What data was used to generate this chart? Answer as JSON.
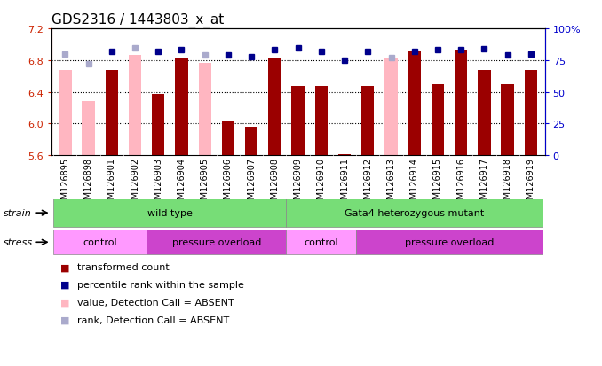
{
  "title": "GDS2316 / 1443803_x_at",
  "samples": [
    "GSM126895",
    "GSM126898",
    "GSM126901",
    "GSM126902",
    "GSM126903",
    "GSM126904",
    "GSM126905",
    "GSM126906",
    "GSM126907",
    "GSM126908",
    "GSM126909",
    "GSM126910",
    "GSM126911",
    "GSM126912",
    "GSM126913",
    "GSM126914",
    "GSM126915",
    "GSM126916",
    "GSM126917",
    "GSM126918",
    "GSM126919"
  ],
  "transformed_count": [
    null,
    null,
    6.67,
    null,
    6.37,
    6.82,
    null,
    6.02,
    5.96,
    6.82,
    6.47,
    6.47,
    5.61,
    6.47,
    null,
    6.92,
    6.5,
    6.93,
    6.67,
    6.5,
    6.68
  ],
  "absent_value": [
    6.67,
    6.28,
    null,
    6.87,
    null,
    null,
    6.77,
    null,
    null,
    null,
    null,
    null,
    null,
    null,
    6.82,
    null,
    null,
    null,
    null,
    null,
    null
  ],
  "percentile_rank": [
    80,
    72,
    82,
    85,
    82,
    83,
    79,
    79,
    78,
    83,
    85,
    82,
    75,
    82,
    77,
    82,
    83,
    83,
    84,
    79,
    80
  ],
  "absent_rank_vals": [
    80,
    72,
    null,
    null,
    null,
    null,
    79,
    null,
    null,
    null,
    null,
    null,
    null,
    null,
    77,
    null,
    null,
    null,
    null,
    null,
    null
  ],
  "ylim": [
    5.6,
    7.2
  ],
  "yticks_left": [
    5.6,
    6.0,
    6.4,
    6.8,
    7.2
  ],
  "yticks_right": [
    0,
    25,
    50,
    75,
    100
  ],
  "bar_color_present": "#9b0000",
  "bar_color_absent": "#ffb6c1",
  "rank_color_present": "#00008b",
  "rank_color_absent": "#aaaacc",
  "bar_width": 0.55,
  "tick_label_bg": "#cccccc",
  "strain_green": "#77dd77",
  "stress_light": "#ff99ff",
  "stress_dark": "#cc44cc"
}
